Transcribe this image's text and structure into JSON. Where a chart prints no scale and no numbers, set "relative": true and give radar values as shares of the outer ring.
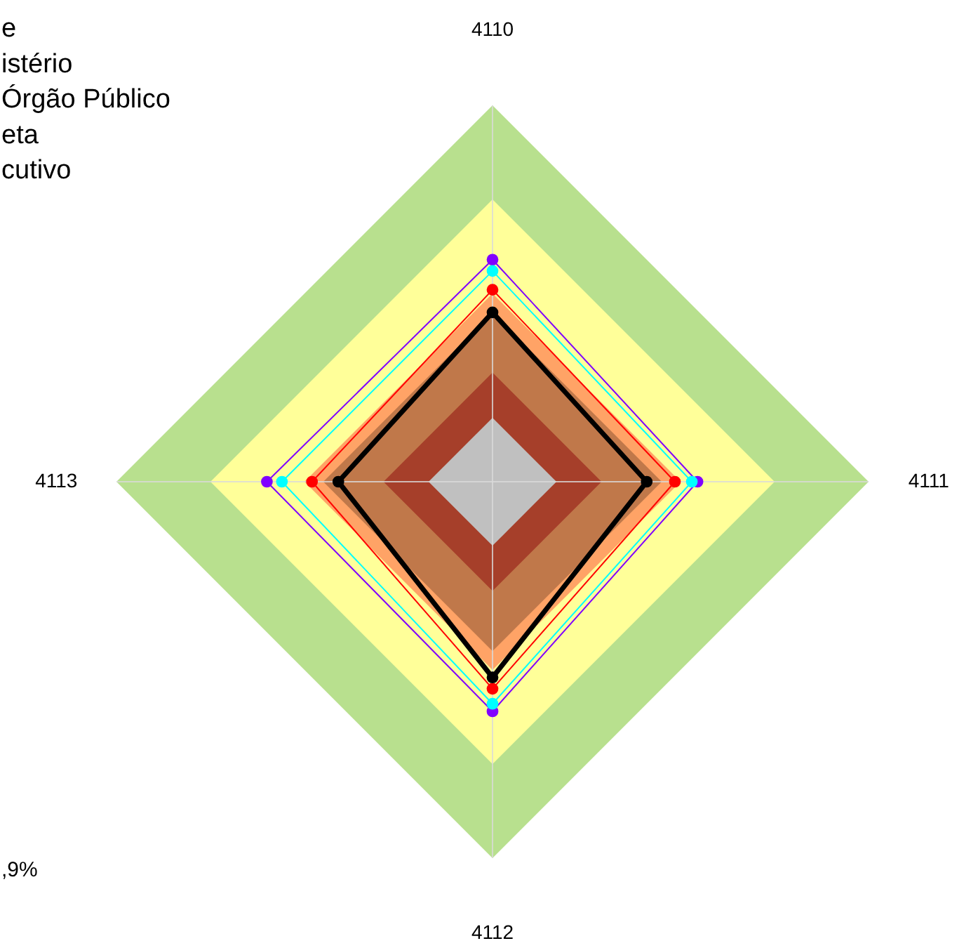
{
  "chart_data": {
    "type": "radar",
    "relative": true,
    "grid": true,
    "marker": "circle",
    "categories": [
      "4110",
      "4111",
      "4112",
      "4113"
    ],
    "series": [
      {
        "color": "#8000ff",
        "values": [
          0.59,
          0.545,
          0.61,
          0.6
        ]
      },
      {
        "color": "#00ffff",
        "values": [
          0.56,
          0.53,
          0.59,
          0.56
        ]
      },
      {
        "color": "#ff0000",
        "values": [
          0.51,
          0.485,
          0.55,
          0.48
        ]
      },
      {
        "color": "#000000",
        "values": [
          0.45,
          0.41,
          0.52,
          0.41
        ]
      }
    ],
    "annotations": [
      "e",
      "istério",
      "Órgão Público",
      "eta",
      "cutivo",
      ",9%"
    ]
  }
}
